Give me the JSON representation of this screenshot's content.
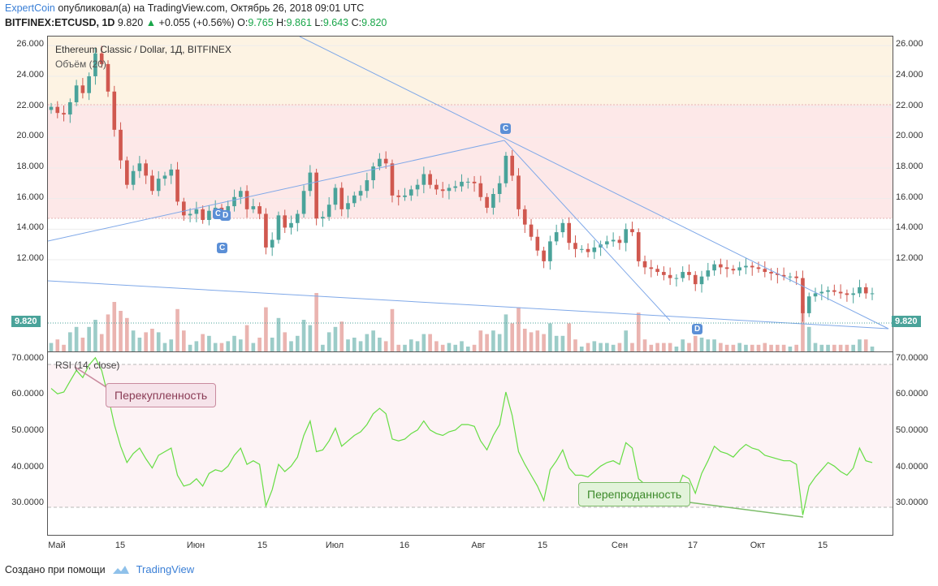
{
  "header": {
    "author": "ExpertCoin",
    "published": "опубликовал(а) на TradingView.com, Октябрь 26, 2018 09:01 UTC",
    "symbol": "BITFINEX:ETCUSD, 1D",
    "last": "9.820",
    "change_arrow": "▲",
    "change": "+0.055 (+0.56%)",
    "o_label": "O:",
    "o": "9.765",
    "h_label": "H:",
    "h": "9.861",
    "l_label": "L:",
    "l": "9.643",
    "c_label": "C:",
    "c": "9.820"
  },
  "legend": {
    "title": "Ethereum Classic / Dollar, 1Д, BITFINEX",
    "volume": "Объём (20)",
    "rsi": "RSI (14, close)"
  },
  "annotations": {
    "overbought": "Перекупленность",
    "oversold": "Перепроданность",
    "marks": [
      "C",
      "C",
      "C",
      "D",
      "D"
    ]
  },
  "price_tag": "9.820",
  "footer": {
    "created": "Создано при помощи",
    "brand": "TradingView"
  },
  "colors": {
    "up": "#4aa39a",
    "down": "#d0584f",
    "rsi": "#66dd44",
    "trend": "#7fa8e8",
    "obzone": "#fdf3e3",
    "pinkzone": "#fde8e8"
  },
  "chart_data": [
    {
      "type": "candlestick",
      "title": "Ethereum Classic / Dollar, 1Д, BITFINEX",
      "ylim": [
        6.0,
        26.6
      ],
      "yticks": [
        "26.000",
        "24.000",
        "22.000",
        "20.000",
        "18.000",
        "16.000",
        "14.000",
        "12.000"
      ],
      "xticks": [
        "Май",
        "15",
        "Июн",
        "15",
        "Июл",
        "16",
        "Авг",
        "15",
        "Сен",
        "17",
        "Окт",
        "15"
      ],
      "close": [
        22.0,
        21.6,
        21.5,
        22.3,
        23.4,
        22.9,
        24.0,
        25.5,
        24.8,
        23.0,
        20.5,
        18.5,
        16.9,
        17.8,
        18.3,
        17.5,
        16.5,
        17.3,
        17.5,
        17.9,
        15.8,
        14.9,
        15.0,
        15.3,
        14.6,
        15.2,
        15.4,
        15.2,
        15.5,
        16.1,
        16.5,
        15.3,
        15.5,
        15.0,
        12.8,
        13.3,
        14.9,
        14.1,
        14.4,
        15.0,
        16.5,
        17.7,
        14.7,
        14.8,
        15.6,
        16.7,
        15.3,
        15.7,
        16.2,
        16.5,
        17.2,
        18.1,
        18.6,
        18.3,
        16.2,
        16.1,
        16.2,
        16.6,
        16.9,
        17.6,
        16.9,
        16.6,
        16.5,
        16.7,
        16.8,
        17.1,
        17.1,
        17.0,
        16.1,
        15.4,
        16.3,
        17.0,
        18.8,
        17.5,
        15.3,
        14.3,
        13.5,
        12.6,
        11.9,
        13.2,
        13.8,
        14.4,
        13.1,
        12.7,
        12.7,
        12.5,
        12.8,
        13.0,
        13.2,
        13.3,
        13.1,
        14.0,
        13.8,
        11.9,
        11.5,
        11.4,
        11.2,
        11.0,
        10.8,
        10.8,
        11.2,
        11.0,
        10.4,
        10.9,
        11.3,
        11.7,
        11.5,
        11.4,
        11.3,
        11.5,
        11.6,
        11.5,
        11.4,
        11.2,
        11.1,
        11.0,
        10.9,
        10.9,
        10.8,
        8.5,
        9.6,
        9.8,
        9.9,
        10.0,
        9.9,
        9.8,
        9.7,
        9.8,
        10.2,
        9.8,
        9.8
      ]
    },
    {
      "type": "line",
      "title": "RSI (14, close)",
      "ylim": [
        21.5,
        72.0
      ],
      "yticks": [
        "70.0000",
        "60.0000",
        "50.0000",
        "40.0000",
        "30.0000"
      ],
      "series": [
        {
          "values": [
            62.0,
            60.5,
            61.0,
            64.0,
            67.0,
            65.0,
            68.5,
            70.5,
            67.0,
            60.0,
            52.0,
            46.0,
            41.5,
            44.0,
            45.5,
            42.5,
            40.0,
            43.5,
            44.5,
            45.5,
            38.0,
            35.0,
            35.5,
            37.0,
            35.0,
            38.5,
            39.5,
            39.0,
            40.5,
            43.5,
            45.5,
            41.0,
            42.0,
            41.0,
            29.5,
            34.0,
            41.0,
            39.0,
            40.5,
            43.0,
            49.0,
            53.0,
            44.5,
            45.0,
            47.5,
            51.0,
            46.0,
            47.5,
            49.0,
            50.0,
            52.0,
            55.0,
            56.5,
            55.0,
            48.0,
            47.5,
            48.0,
            49.5,
            50.5,
            53.0,
            50.5,
            49.5,
            49.0,
            50.0,
            50.5,
            52.0,
            52.0,
            51.5,
            47.5,
            45.0,
            49.0,
            52.0,
            61.0,
            54.5,
            44.5,
            41.0,
            38.0,
            35.0,
            31.0,
            39.5,
            42.0,
            45.0,
            40.0,
            38.0,
            38.0,
            37.5,
            39.0,
            40.5,
            41.5,
            42.0,
            41.0,
            47.0,
            45.5,
            37.0,
            35.5,
            35.5,
            34.5,
            33.5,
            33.0,
            33.5,
            38.0,
            37.0,
            33.0,
            38.5,
            42.0,
            46.0,
            44.5,
            44.0,
            43.0,
            45.0,
            46.5,
            45.5,
            45.0,
            43.5,
            43.0,
            42.5,
            42.0,
            42.0,
            41.0,
            27.0,
            35.0,
            37.5,
            39.5,
            41.5,
            40.5,
            39.0,
            38.0,
            40.0,
            45.5,
            42.0,
            41.5
          ]
        }
      ]
    }
  ]
}
